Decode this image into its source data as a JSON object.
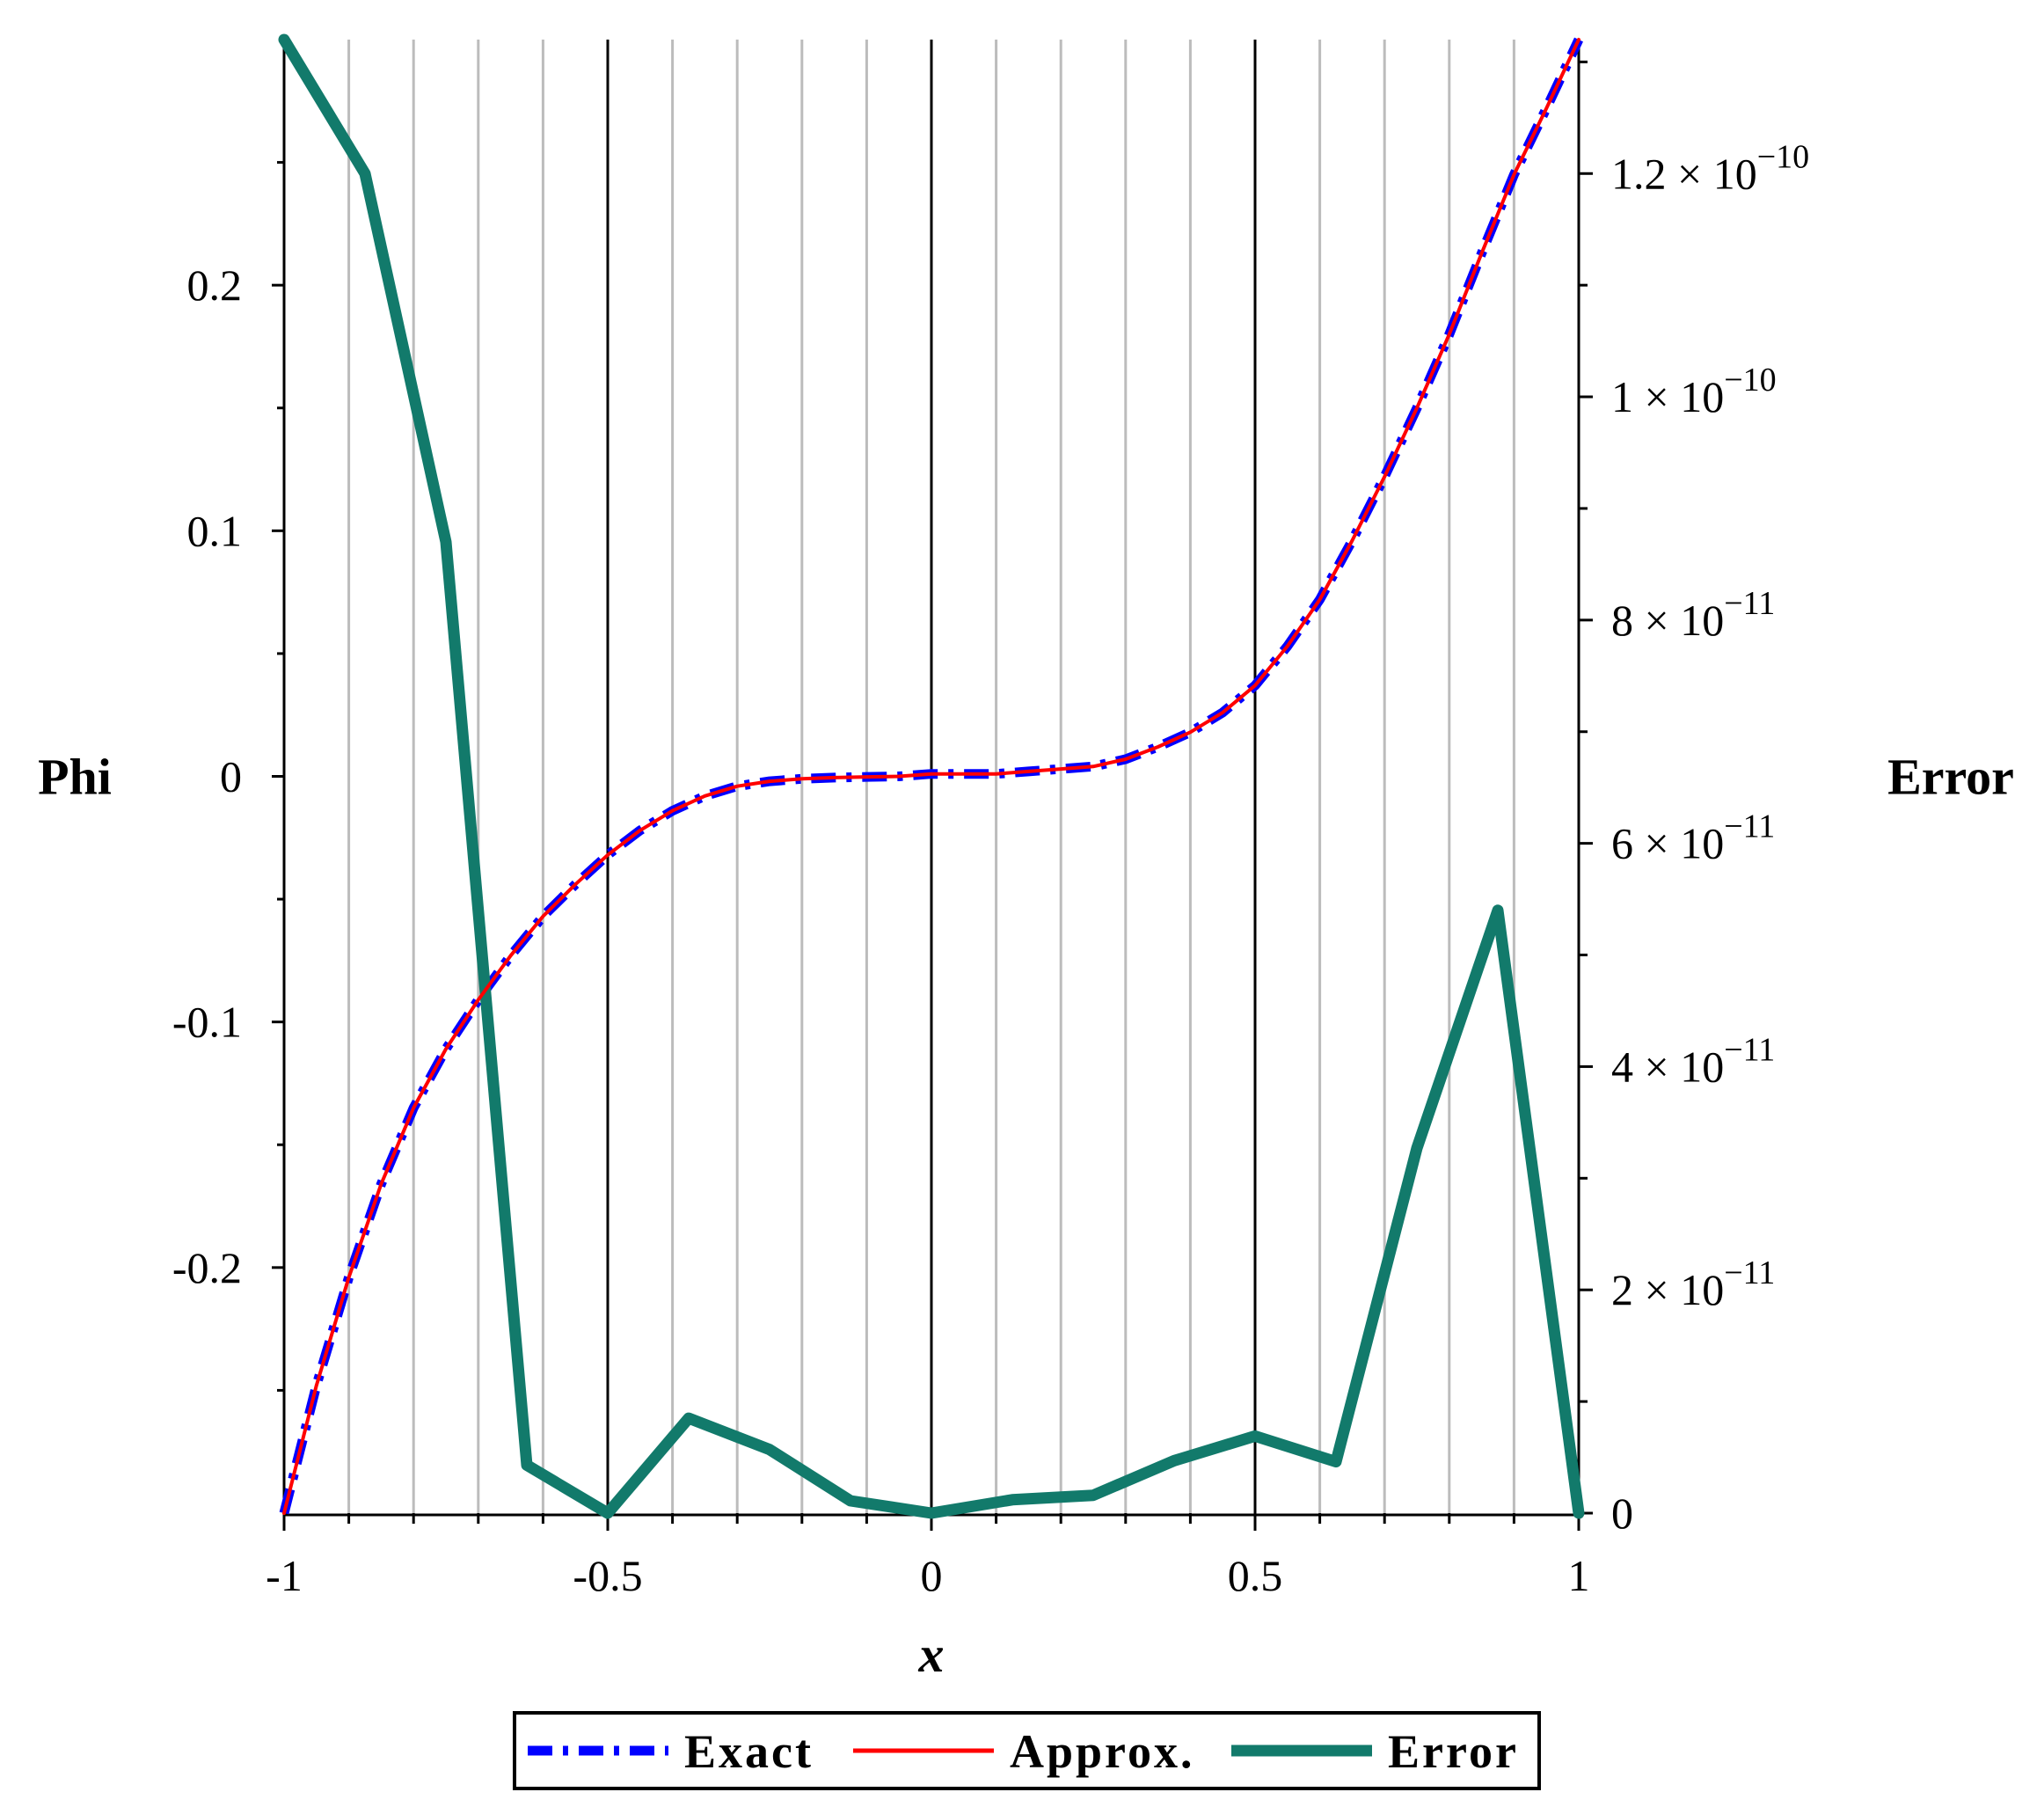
{
  "chart_data": {
    "type": "line",
    "xlabel": "x",
    "ylabel": "Phi",
    "y2label": "Error",
    "xlim": [
      -1,
      1
    ],
    "ylim": [
      -0.3,
      0.3
    ],
    "y2lim": [
      0,
      1.32e-10
    ],
    "x_ticks": [
      -1,
      -0.5,
      0,
      0.5,
      1
    ],
    "x_tick_labels": [
      "-1",
      "-0.5",
      "0",
      "0.5",
      "1"
    ],
    "y_ticks": [
      -0.2,
      -0.1,
      0,
      0.1,
      0.2
    ],
    "y_tick_labels": [
      "-0.2",
      "-0.1",
      "0",
      "0.1",
      "0.2"
    ],
    "y2_ticks": [
      0,
      2e-11,
      4e-11,
      6e-11,
      8e-11,
      1e-10,
      1.2e-10
    ],
    "y2_tick_labels": [
      {
        "mantissa": "0",
        "exp": ""
      },
      {
        "mantissa": "2 × 10",
        "exp": "−11"
      },
      {
        "mantissa": "4 × 10",
        "exp": "−11"
      },
      {
        "mantissa": "6 × 10",
        "exp": "−11"
      },
      {
        "mantissa": "8 × 10",
        "exp": "−11"
      },
      {
        "mantissa": "1 × 10",
        "exp": "−10"
      },
      {
        "mantissa": "1.2 × 10",
        "exp": "−10"
      }
    ],
    "grid": "vertical",
    "legend_position": "bottom",
    "colors": {
      "exact": "#0000ff",
      "approx": "#ff0000",
      "error": "#127a6b",
      "grid_major": "#000000",
      "grid_minor": "#bcbcbc"
    },
    "series": [
      {
        "name": "Exact",
        "axis": "left",
        "style": "dash-dot",
        "x": [
          -1,
          -0.95,
          -0.9,
          -0.85,
          -0.8,
          -0.75,
          -0.7,
          -0.65,
          -0.6,
          -0.55,
          -0.5,
          -0.45,
          -0.4,
          -0.35,
          -0.3,
          -0.25,
          -0.2,
          -0.15,
          -0.1,
          -0.05,
          0,
          0.05,
          0.1,
          0.15,
          0.2,
          0.25,
          0.3,
          0.35,
          0.4,
          0.45,
          0.5,
          0.55,
          0.6,
          0.65,
          0.7,
          0.75,
          0.8,
          0.85,
          0.9,
          0.95,
          1
        ],
        "y": [
          -0.3,
          -0.248,
          -0.204,
          -0.166,
          -0.135,
          -0.111,
          -0.091,
          -0.073,
          -0.057,
          -0.044,
          -0.032,
          -0.022,
          -0.014,
          -0.008,
          -0.004,
          -0.002,
          -0.001,
          -0.0005,
          -0.0002,
          0.0,
          0.001,
          0.001,
          0.001,
          0.002,
          0.003,
          0.004,
          0.007,
          0.012,
          0.018,
          0.026,
          0.037,
          0.053,
          0.072,
          0.096,
          0.122,
          0.15,
          0.18,
          0.213,
          0.245,
          0.272,
          0.3
        ]
      },
      {
        "name": "Approx.",
        "axis": "left",
        "style": "solid",
        "x": [
          -1,
          -0.95,
          -0.9,
          -0.85,
          -0.8,
          -0.75,
          -0.7,
          -0.65,
          -0.6,
          -0.55,
          -0.5,
          -0.45,
          -0.4,
          -0.35,
          -0.3,
          -0.25,
          -0.2,
          -0.15,
          -0.1,
          -0.05,
          0,
          0.05,
          0.1,
          0.15,
          0.2,
          0.25,
          0.3,
          0.35,
          0.4,
          0.45,
          0.5,
          0.55,
          0.6,
          0.65,
          0.7,
          0.75,
          0.8,
          0.85,
          0.9,
          0.95,
          1
        ],
        "y": [
          -0.3,
          -0.248,
          -0.204,
          -0.166,
          -0.135,
          -0.111,
          -0.091,
          -0.073,
          -0.057,
          -0.044,
          -0.032,
          -0.022,
          -0.014,
          -0.008,
          -0.004,
          -0.002,
          -0.001,
          -0.0005,
          -0.0002,
          0.0,
          0.001,
          0.001,
          0.001,
          0.002,
          0.003,
          0.004,
          0.007,
          0.012,
          0.018,
          0.026,
          0.037,
          0.053,
          0.072,
          0.096,
          0.122,
          0.15,
          0.18,
          0.213,
          0.245,
          0.272,
          0.3
        ]
      },
      {
        "name": "Error",
        "axis": "right",
        "style": "solid-thick",
        "x": [
          -1,
          -0.875,
          -0.75,
          -0.625,
          -0.5,
          -0.375,
          -0.25,
          -0.125,
          0,
          0.125,
          0.25,
          0.375,
          0.5,
          0.625,
          0.75,
          0.875,
          1
        ],
        "y": [
          1.32e-10,
          1.2e-10,
          8.7e-11,
          4.3e-12,
          0,
          8.5e-12,
          5.7e-12,
          1.1e-12,
          0,
          1.2e-12,
          1.6e-12,
          4.7e-12,
          6.9e-12,
          4.6e-12,
          3.27e-11,
          5.4e-11,
          0
        ]
      }
    ]
  }
}
